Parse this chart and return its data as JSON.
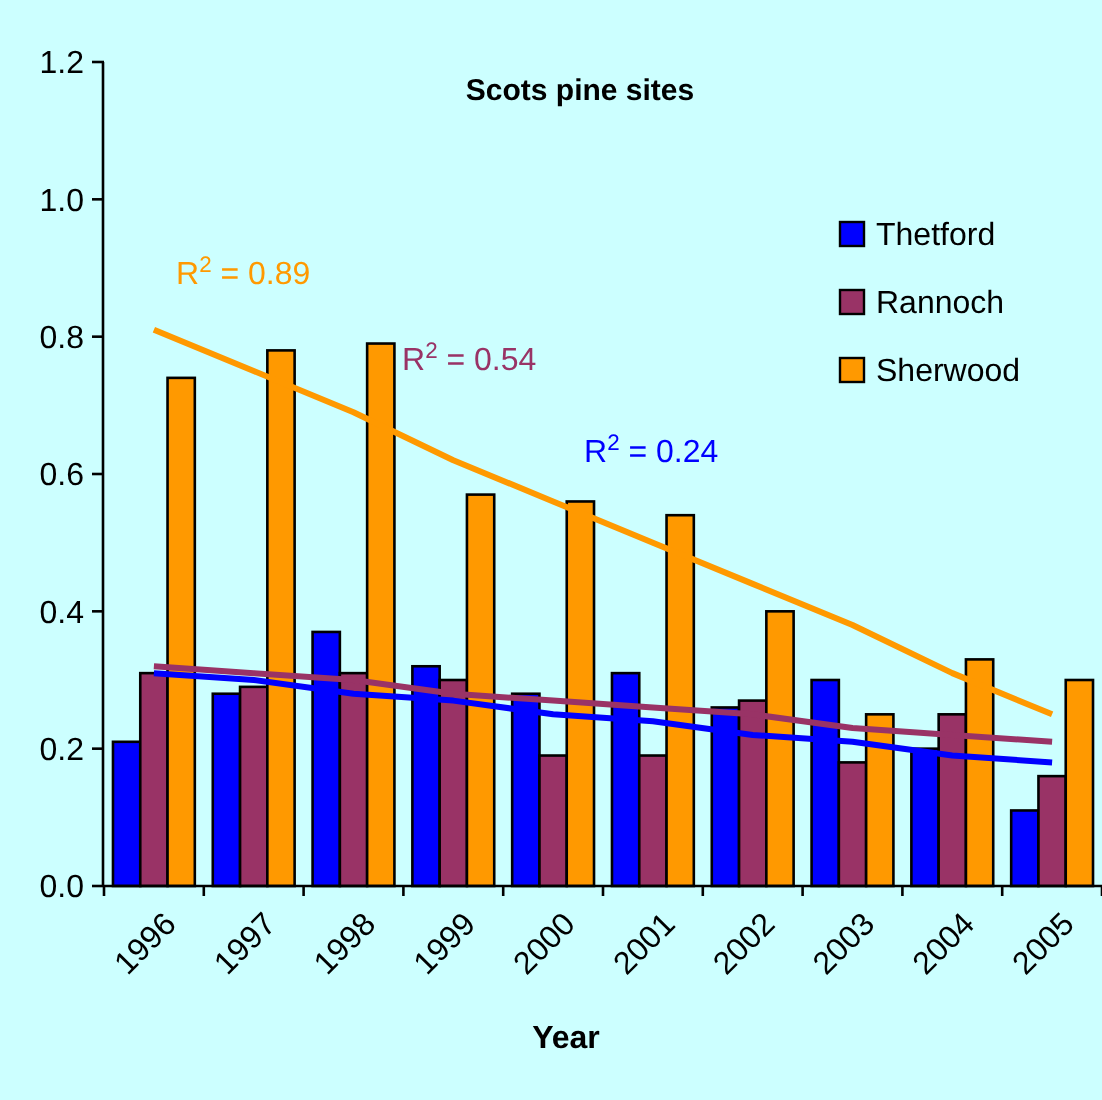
{
  "chart_data": {
    "type": "bar",
    "title": "Scots pine sites",
    "xlabel": "Year",
    "categories": [
      "1996",
      "1997",
      "1998",
      "1999",
      "2000",
      "2001",
      "2002",
      "2003",
      "2004",
      "2005"
    ],
    "series": [
      {
        "name": "Thetford",
        "color": "#0000ff",
        "values": [
          0.21,
          0.28,
          0.37,
          0.32,
          0.28,
          0.31,
          0.26,
          0.3,
          0.2,
          0.11
        ]
      },
      {
        "name": "Rannoch",
        "color": "#993366",
        "values": [
          0.31,
          0.29,
          0.31,
          0.3,
          0.19,
          0.19,
          0.27,
          0.18,
          0.25,
          0.16
        ]
      },
      {
        "name": "Sherwood",
        "color": "#ff9900",
        "values": [
          0.74,
          0.78,
          0.79,
          0.57,
          0.56,
          0.54,
          0.4,
          0.25,
          0.33,
          0.3
        ]
      },
      {
        "type": "line",
        "color": "#ff9900",
        "values": [
          0.81,
          0.75,
          0.69,
          0.62,
          0.56,
          0.5,
          0.44,
          0.38,
          0.31,
          0.25
        ]
      },
      {
        "type": "line",
        "color": "#993366",
        "values": [
          0.32,
          0.31,
          0.3,
          0.28,
          0.27,
          0.26,
          0.25,
          0.23,
          0.22,
          0.21
        ]
      },
      {
        "type": "line",
        "color": "#0000ff",
        "values": [
          0.31,
          0.3,
          0.28,
          0.27,
          0.25,
          0.24,
          0.22,
          0.21,
          0.19,
          0.18
        ]
      }
    ],
    "annotations": [
      "R$^{2}$ = 0.89",
      "R$^{2}$ = 0.54",
      "R$^{2}$ = 0.24"
    ],
    "ylim": [
      0,
      1.2
    ],
    "yticks": [
      {
        "value": 0,
        "label": "0.0"
      },
      {
        "value": 0.2,
        "label": "0.2"
      },
      {
        "value": 0.4,
        "label": "0.4"
      },
      {
        "value": 0.6,
        "label": "0.6"
      },
      {
        "value": 0.8,
        "label": "0.8"
      },
      {
        "value": 1.0,
        "label": "1.0"
      },
      {
        "value": 1.2,
        "label": "1.2"
      }
    ],
    "grid": false,
    "legend": "top right"
  }
}
